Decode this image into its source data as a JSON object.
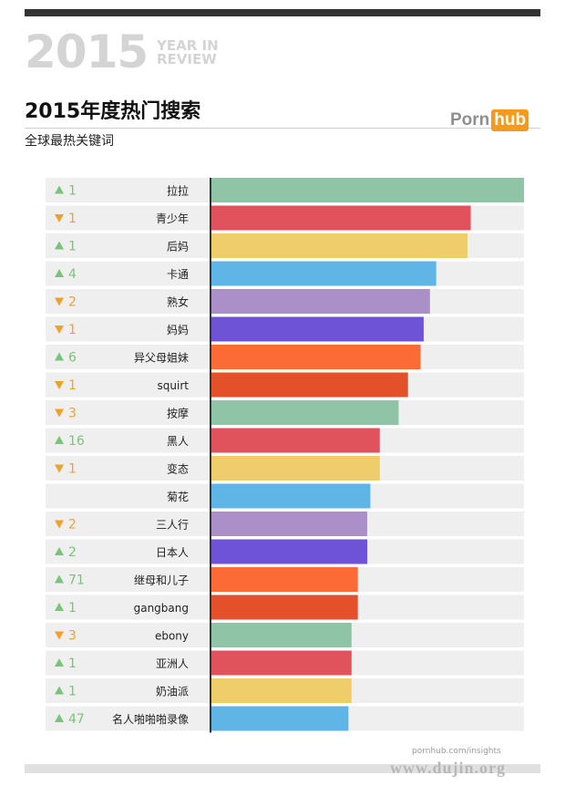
{
  "header": {
    "year": "2015",
    "year_in_review": "YEAR IN REVIEW",
    "title": "2015年度热门搜索",
    "subtitle": "全球最热关键词",
    "logo_left": "Porn",
    "logo_right": "hub"
  },
  "footer": {
    "source": "pornhub.com/insights",
    "watermark": "www.dujin.org"
  },
  "colors": {
    "up": "#7cc27a",
    "down": "#f0a12d",
    "label_bg": "#efefef",
    "track_bg": "#efefef",
    "axis": "#333333"
  },
  "chart_data": {
    "type": "bar",
    "orientation": "horizontal",
    "xlim": [
      0,
      100
    ],
    "categories": [
      "拉拉",
      "青少年",
      "后妈",
      "卡通",
      "熟女",
      "妈妈",
      "异父母姐妹",
      "squirt",
      "按摩",
      "黑人",
      "变态",
      "菊花",
      "三人行",
      "日本人",
      "继母和儿子",
      "gangbang",
      "ebony",
      "亚洲人",
      "奶油派",
      "名人啪啪啪录像"
    ],
    "values": [
      100,
      83,
      82,
      72,
      70,
      68,
      67,
      63,
      60,
      54,
      54,
      51,
      50,
      50,
      47,
      47,
      45,
      45,
      45,
      44
    ],
    "rank_change": [
      {
        "dir": "up",
        "value": "1"
      },
      {
        "dir": "down",
        "value": "1"
      },
      {
        "dir": "up",
        "value": "1"
      },
      {
        "dir": "up",
        "value": "4"
      },
      {
        "dir": "down",
        "value": "2"
      },
      {
        "dir": "down",
        "value": "1"
      },
      {
        "dir": "up",
        "value": "6"
      },
      {
        "dir": "down",
        "value": "1"
      },
      {
        "dir": "down",
        "value": "3"
      },
      {
        "dir": "up",
        "value": "16"
      },
      {
        "dir": "down",
        "value": "1"
      },
      {
        "dir": "none",
        "value": ""
      },
      {
        "dir": "down",
        "value": "2"
      },
      {
        "dir": "up",
        "value": "2"
      },
      {
        "dir": "up",
        "value": "71"
      },
      {
        "dir": "up",
        "value": "1"
      },
      {
        "dir": "down",
        "value": "3"
      },
      {
        "dir": "up",
        "value": "1"
      },
      {
        "dir": "up",
        "value": "1"
      },
      {
        "dir": "up",
        "value": "47"
      }
    ],
    "bar_colors": [
      "#8fc4a6",
      "#e0525c",
      "#f0cd6b",
      "#5fb5e6",
      "#ab8fc8",
      "#6f53d7",
      "#fc6a36",
      "#e4502a"
    ],
    "grid": false,
    "legend": "none"
  }
}
